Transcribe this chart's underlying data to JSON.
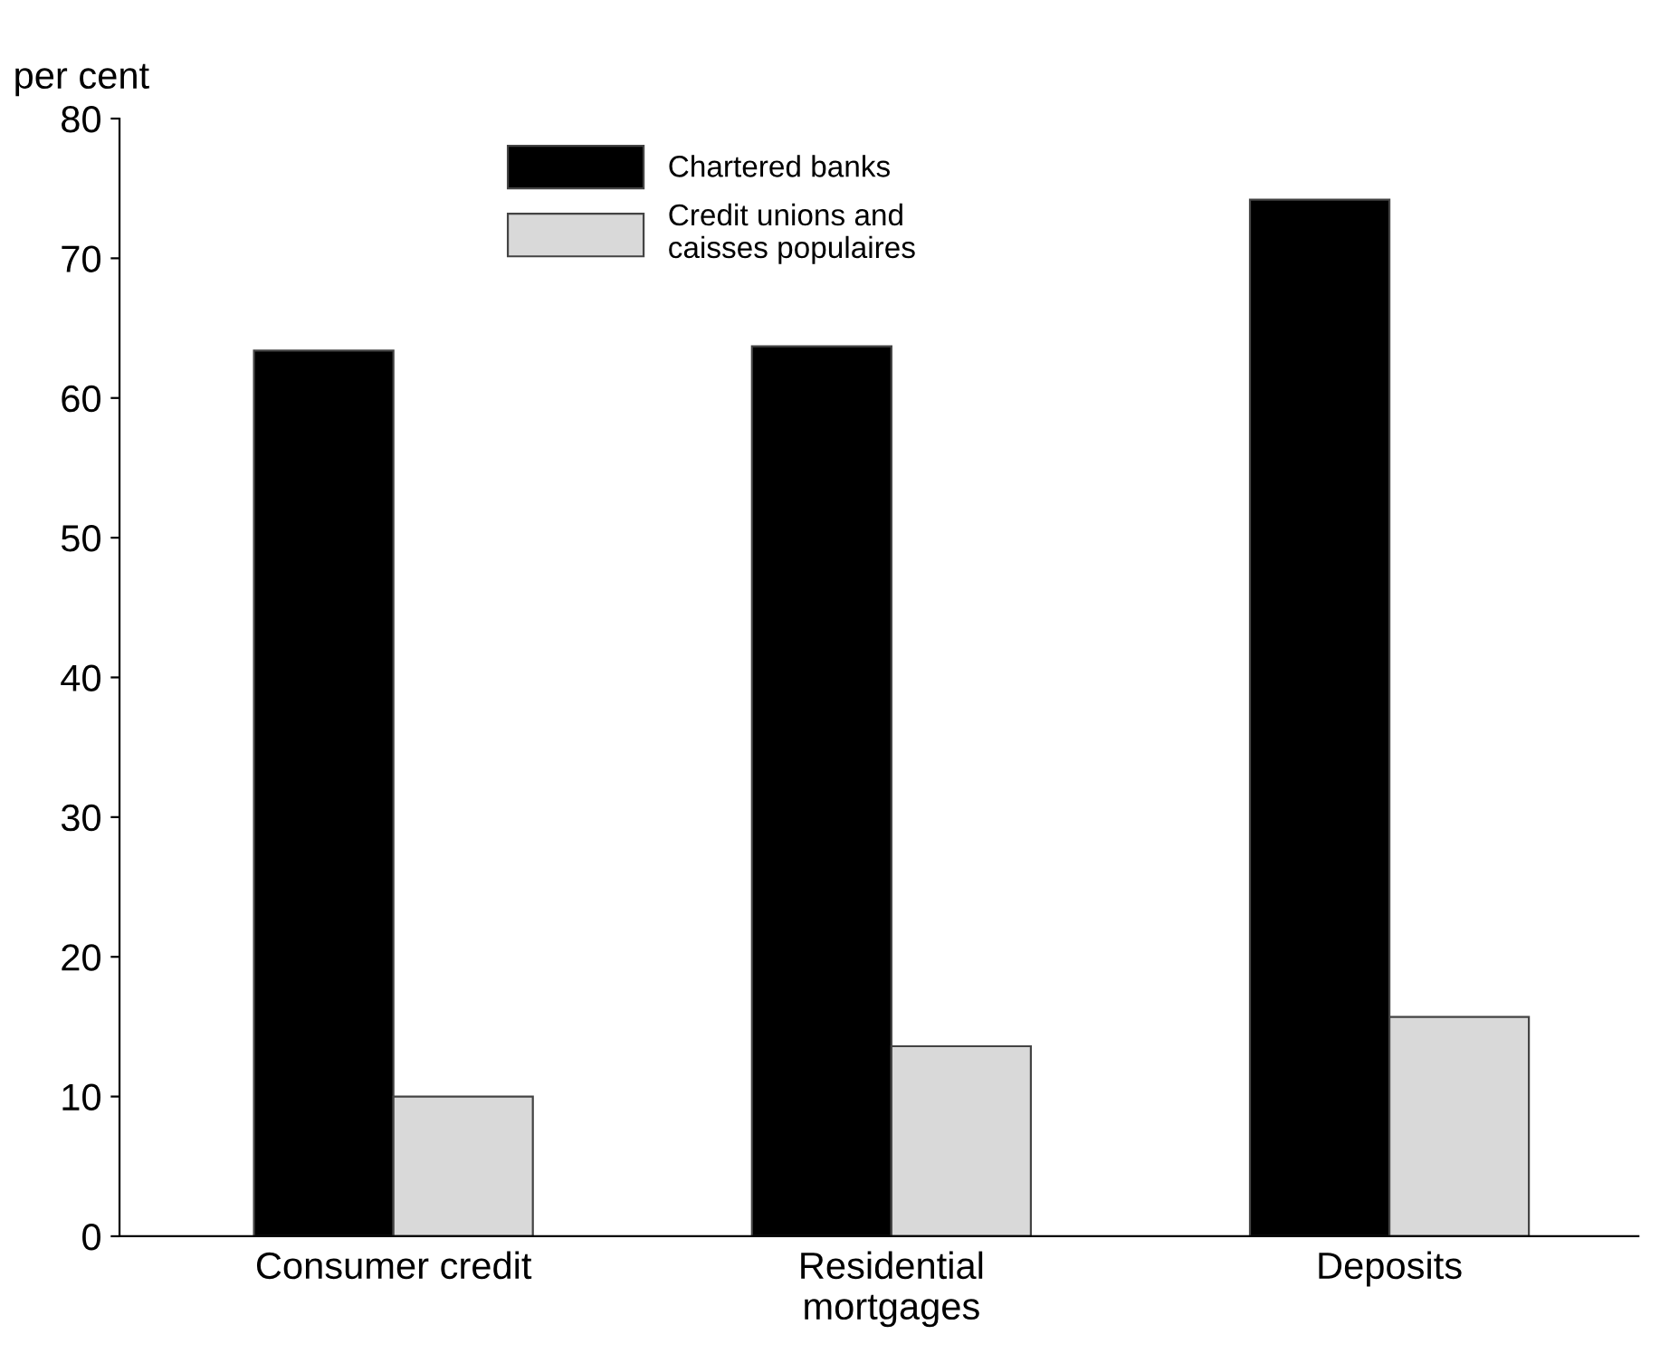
{
  "chart_data": {
    "type": "bar",
    "ylabel": "per cent",
    "categories": [
      "Consumer credit",
      "Residential\nmortgages",
      "Deposits"
    ],
    "series": [
      {
        "name": "Chartered banks",
        "color": "#000000",
        "values": [
          63.4,
          63.7,
          74.2
        ]
      },
      {
        "name": "Credit unions and\ncaisses populaires",
        "color": "#d9d9d9",
        "values": [
          10.0,
          13.6,
          15.7
        ]
      }
    ],
    "ylim": [
      0,
      80
    ],
    "yticks": [
      0,
      10,
      20,
      30,
      40,
      50,
      60,
      70,
      80
    ],
    "grid": false,
    "legend": "top"
  }
}
